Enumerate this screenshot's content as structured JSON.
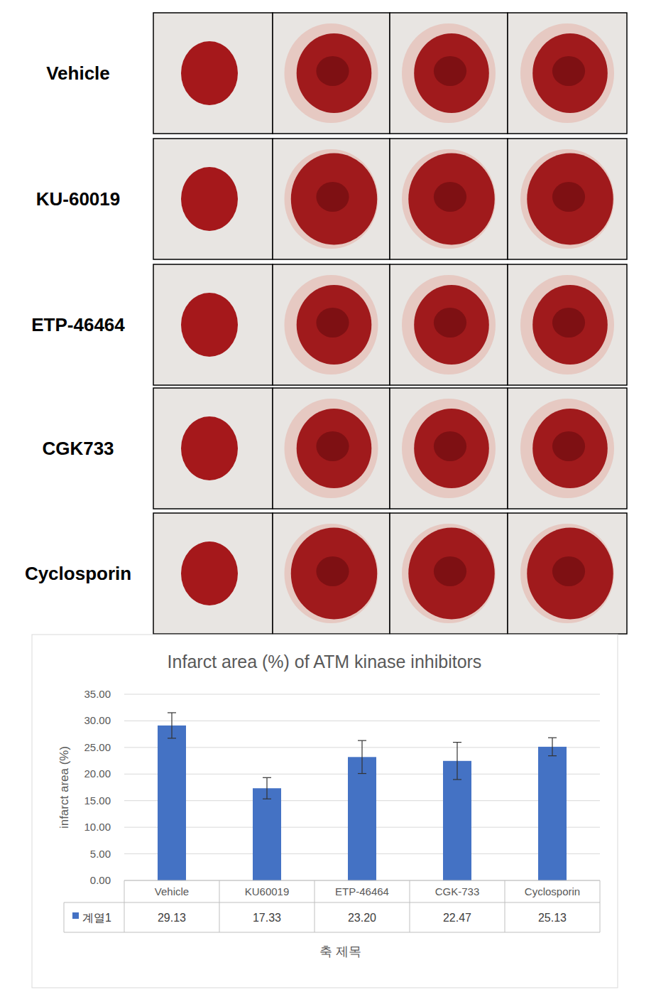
{
  "images": {
    "rows": [
      "Vehicle",
      "KU-60019",
      "ETP-46464",
      "CGK733",
      "Cyclosporin"
    ]
  },
  "chart_data": {
    "type": "bar",
    "title": "Infarct area (%) of ATM kinase inhibitors",
    "x_label": "축 제목",
    "y_label": "infarct area (%)",
    "categories": [
      "Vehicle",
      "KU60019",
      "ETP-46464",
      "CGK-733",
      "Cyclosporin"
    ],
    "series": [
      {
        "name": "계열1",
        "color": "#4472c4",
        "values": [
          29.13,
          17.33,
          23.2,
          22.47,
          25.13
        ],
        "value_labels": [
          "29.13",
          "17.33",
          "23.20",
          "22.47",
          "25.13"
        ],
        "errors": [
          2.4,
          2.0,
          3.1,
          3.5,
          1.7
        ]
      }
    ],
    "ylim": [
      0,
      35
    ],
    "yticks": [
      {
        "value": 0,
        "label": "0.00"
      },
      {
        "value": 5,
        "label": "5.00"
      },
      {
        "value": 10,
        "label": "10.00"
      },
      {
        "value": 15,
        "label": "15.00"
      },
      {
        "value": 20,
        "label": "20.00"
      },
      {
        "value": 25,
        "label": "25.00"
      },
      {
        "value": 30,
        "label": "30.00"
      },
      {
        "value": 35,
        "label": "35.00"
      }
    ],
    "grid": true,
    "data_labels": true
  }
}
